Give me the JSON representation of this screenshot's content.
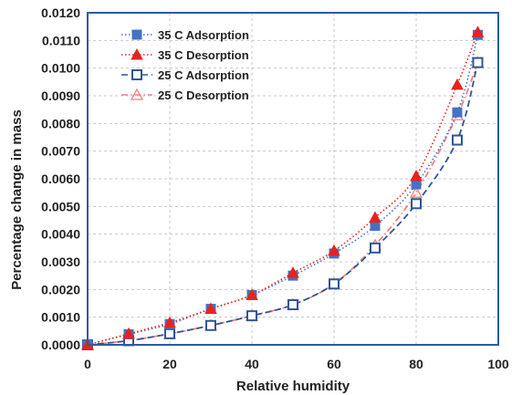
{
  "chart_data": {
    "type": "scatter",
    "title": "",
    "xlabel": "Relative humidity",
    "ylabel": "Percentage change in mass",
    "xlim": [
      0,
      100
    ],
    "ylim": [
      0,
      0.012
    ],
    "xticks": [
      0,
      20,
      40,
      60,
      80,
      100
    ],
    "yticks": [
      "0.0000",
      "0.0010",
      "0.0020",
      "0.0030",
      "0.0040",
      "0.0050",
      "0.0060",
      "0.0070",
      "0.0080",
      "0.0090",
      "0.0100",
      "0.0110",
      "0.0120"
    ],
    "grid": "horizontal-and-vertical dashed",
    "legend_position": "top-left",
    "series": [
      {
        "name": "35 C Adsorption",
        "color": "#4472C4",
        "line": "dotted",
        "marker": "square-filled",
        "x": [
          0,
          10,
          20,
          30,
          40,
          50,
          60,
          70,
          80,
          90,
          95
        ],
        "y": [
          0.0,
          0.00038,
          0.00075,
          0.0013,
          0.0018,
          0.0025,
          0.0033,
          0.0043,
          0.0058,
          0.0084,
          0.0112
        ]
      },
      {
        "name": "35 C Desorption",
        "color": "#E8231E",
        "line": "dotted",
        "marker": "triangle-filled",
        "x": [
          0,
          10,
          20,
          30,
          40,
          50,
          60,
          70,
          80,
          90,
          95
        ],
        "y": [
          0.0,
          0.0004,
          0.0008,
          0.0013,
          0.0018,
          0.0026,
          0.0034,
          0.0046,
          0.0061,
          0.0094,
          0.0113
        ]
      },
      {
        "name": "25 C Adsorption",
        "color": "#2F5597",
        "line": "dashed",
        "marker": "square-open",
        "x": [
          0,
          10,
          20,
          30,
          40,
          50,
          60,
          70,
          80,
          90,
          95
        ],
        "y": [
          0.0,
          0.00015,
          0.0004,
          0.0007,
          0.00105,
          0.00145,
          0.0022,
          0.0035,
          0.0051,
          0.0074,
          0.0102
        ]
      },
      {
        "name": "25 C Desorption",
        "color": "#F08080",
        "line": "dash-dot",
        "marker": "triangle-open",
        "x": [
          0,
          10,
          20,
          30,
          40,
          50,
          60,
          70,
          80,
          90,
          95
        ],
        "y": [
          0.0,
          0.00015,
          0.0004,
          0.0007,
          0.00105,
          0.00145,
          0.0022,
          0.0036,
          0.0055,
          0.0083,
          0.0102
        ]
      }
    ]
  }
}
